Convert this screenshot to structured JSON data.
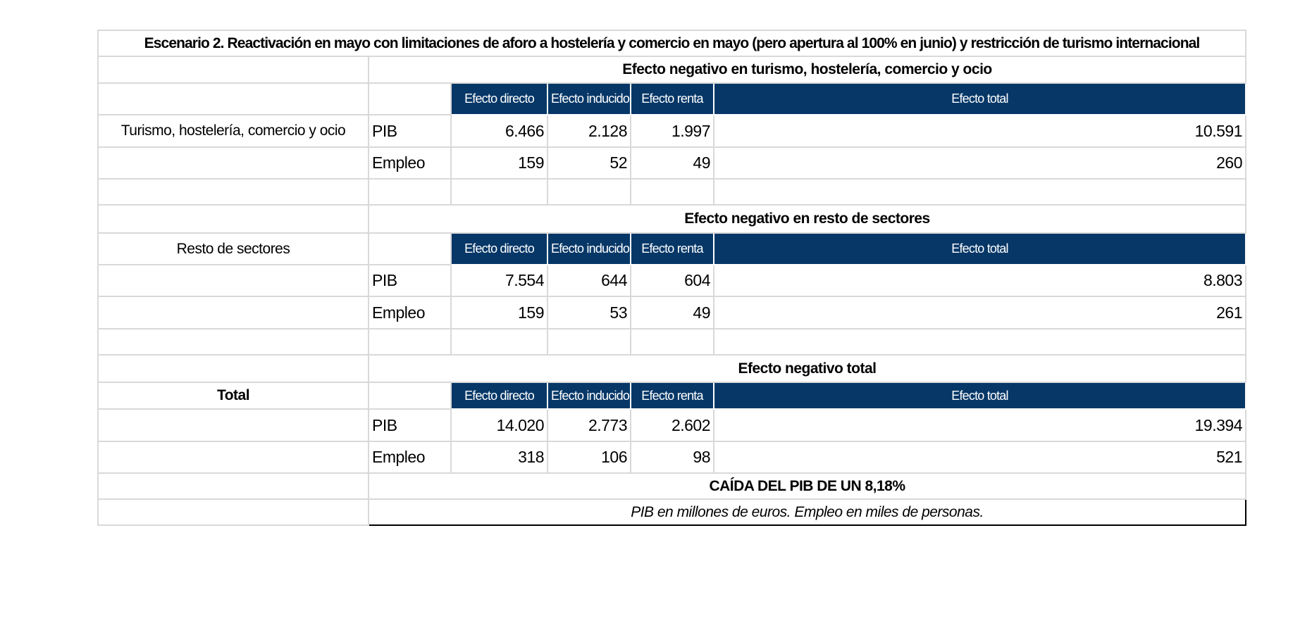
{
  "title": "Escenario 2. Reactivación en mayo con limitaciones de aforo a hostelería y comercio en mayo (pero apertura al 100% en junio) y restricción de turismo internacional",
  "sections": [
    {
      "group_label": "Turismo, hostelería, comercio y ocio",
      "heading": "Efecto negativo en turismo, hostelería, comercio y ocio",
      "columns": [
        "Efecto directo",
        "Efecto inducido",
        "Efecto renta",
        "Efecto total"
      ],
      "rows": [
        {
          "label": "PIB",
          "values": [
            "6.466",
            "2.128",
            "1.997",
            "10.591"
          ]
        },
        {
          "label": "Empleo",
          "values": [
            "159",
            "52",
            "49",
            "260"
          ]
        }
      ]
    },
    {
      "group_label": "Resto de sectores",
      "heading": "Efecto negativo en resto de sectores",
      "columns": [
        "Efecto directo",
        "Efecto inducido",
        "Efecto renta",
        "Efecto total"
      ],
      "rows": [
        {
          "label": "PIB",
          "values": [
            "7.554",
            "644",
            "604",
            "8.803"
          ]
        },
        {
          "label": "Empleo",
          "values": [
            "159",
            "53",
            "49",
            "261"
          ]
        }
      ]
    },
    {
      "group_label": "Total",
      "heading": "Efecto negativo total",
      "columns": [
        "Efecto directo",
        "Efecto inducido",
        "Efecto renta",
        "Efecto total"
      ],
      "rows": [
        {
          "label": "PIB",
          "values": [
            "14.020",
            "2.773",
            "2.602",
            "19.394"
          ]
        },
        {
          "label": "Empleo",
          "values": [
            "318",
            "106",
            "98",
            "521"
          ]
        }
      ]
    }
  ],
  "conclusion": "CAÍDA DEL PIB DE UN 8,18%",
  "note": "PIB en millones de euros. Empleo en miles de personas."
}
